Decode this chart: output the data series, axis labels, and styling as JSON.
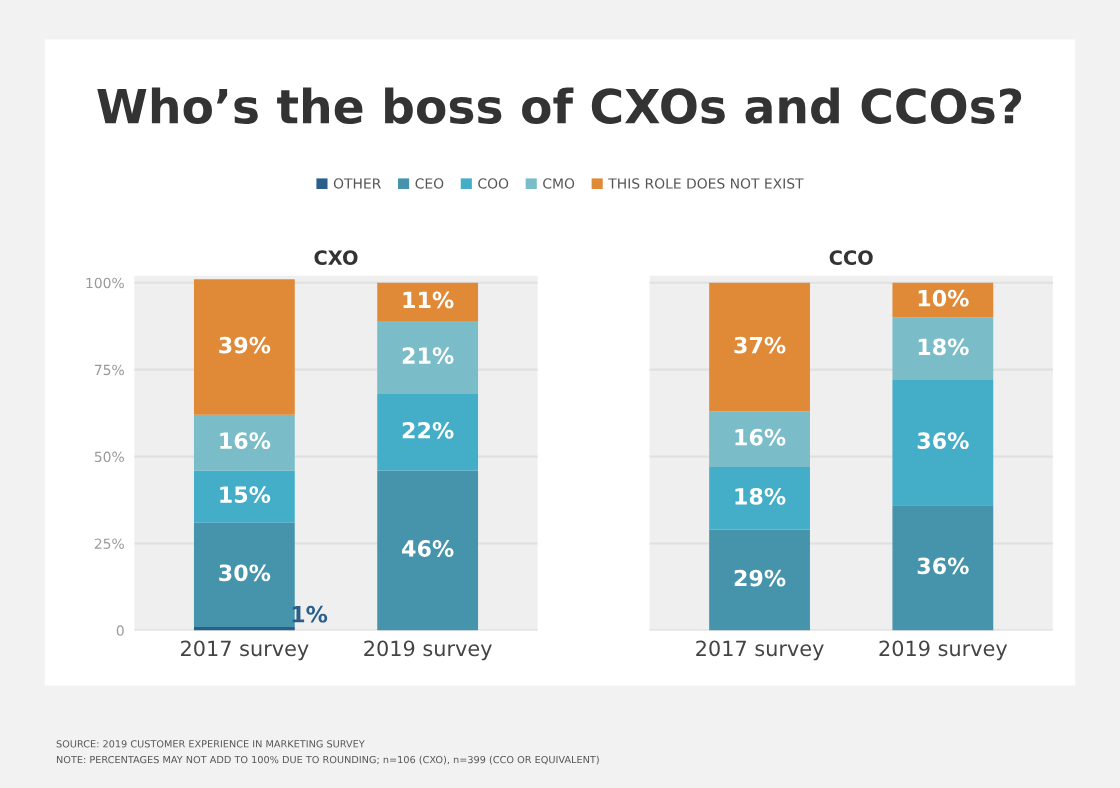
{
  "chart_data": [
    {
      "type": "bar",
      "stacked": true,
      "title": "Who’s the boss of CXOs and CCOs?",
      "subtitle": "CXO",
      "categories": [
        "2017 survey",
        "2019 survey"
      ],
      "series": [
        {
          "name": "OTHER",
          "color": "#2a5f8c",
          "values": [
            1,
            0
          ],
          "value_labels": [
            "1%",
            null
          ]
        },
        {
          "name": "CEO",
          "color": "#4694ac",
          "values": [
            30,
            46
          ],
          "value_labels": [
            "30%",
            "46%"
          ]
        },
        {
          "name": "COO",
          "color": "#44adc8",
          "values": [
            15,
            22
          ],
          "value_labels": [
            "15%",
            "22%"
          ]
        },
        {
          "name": "CMO",
          "color": "#7abcc8",
          "values": [
            16,
            21
          ],
          "value_labels": [
            "16%",
            "21%"
          ]
        },
        {
          "name": "THIS ROLE DOES NOT EXIST",
          "color": "#e08a38",
          "values": [
            39,
            11
          ],
          "value_labels": [
            "39%",
            "11%"
          ]
        }
      ],
      "legend": "top",
      "ylim": [
        0,
        102
      ],
      "yticks": [
        0,
        {
          "value": 25,
          "label": "25%"
        },
        {
          "value": 50,
          "label": "50%"
        },
        {
          "value": 75,
          "label": "75%"
        },
        {
          "value": 100,
          "label": "100%"
        }
      ],
      "grid": "y",
      "annotations": [
        "SOURCE: 2019 CUSTOMER EXPERIENCE IN MARKETING SURVEY",
        "NOTE: PERCENTAGES MAY NOT ADD TO 100% DUE TO ROUNDING; n=106 (CXO), n=399 (CCO OR EQUIVALENT)"
      ]
    },
    {
      "type": "bar",
      "stacked": true,
      "subtitle": "CCO",
      "categories": [
        "2017 survey",
        "2019 survey"
      ],
      "series": [
        {
          "color": "#2a5f8c",
          "values": [
            0,
            0
          ],
          "value_labels": [
            null,
            null
          ]
        },
        {
          "color": "#4694ac",
          "values": [
            29,
            36
          ],
          "value_labels": [
            "29%",
            "36%"
          ]
        },
        {
          "color": "#44adc8",
          "values": [
            18,
            36
          ],
          "value_labels": [
            "18%",
            "36%"
          ]
        },
        {
          "color": "#7abcc8",
          "values": [
            16,
            18
          ],
          "value_labels": [
            "16%",
            "18%"
          ]
        },
        {
          "color": "#e08a38",
          "values": [
            37,
            10
          ],
          "value_labels": [
            "37%",
            "10%"
          ]
        }
      ],
      "ylim": [
        0,
        102
      ],
      "yticks": [
        0,
        25,
        50,
        75,
        100
      ],
      "grid": "y",
      "tick_labels": "x"
    }
  ]
}
